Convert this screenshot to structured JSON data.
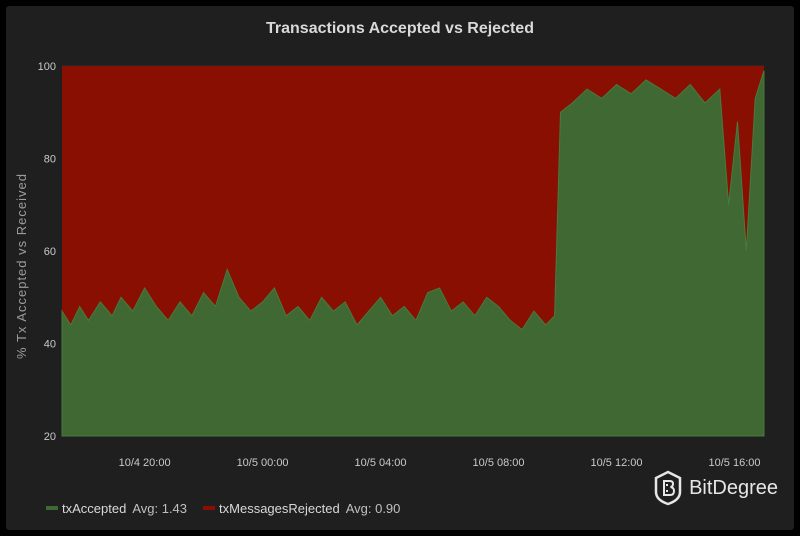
{
  "chart_data": {
    "type": "area",
    "stacked": true,
    "title": "Transactions Accepted vs Rejected",
    "ylabel": "% Tx Accepted vs Received",
    "xlabel": "",
    "ylim": [
      20,
      100
    ],
    "yticks": [
      "20",
      "40",
      "60",
      "80",
      "100"
    ],
    "xticks": [
      "10/4 20:00",
      "10/5 00:00",
      "10/5 04:00",
      "10/5 08:00",
      "10/5 12:00",
      "10/5 16:00"
    ],
    "xtick_hours": [
      20,
      24,
      28,
      32,
      36,
      40
    ],
    "xlim_hours": [
      17.2,
      41.0
    ],
    "grid": true,
    "legend_position": "bottom-left",
    "series": [
      {
        "name": "txAccepted",
        "avg_label": "Avg: 1.43",
        "color": "#3f6833",
        "x_hours": [
          17.2,
          17.5,
          17.8,
          18.1,
          18.5,
          18.9,
          19.2,
          19.6,
          20.0,
          20.4,
          20.8,
          21.2,
          21.6,
          22.0,
          22.4,
          22.8,
          23.2,
          23.6,
          24.0,
          24.4,
          24.8,
          25.2,
          25.6,
          26.0,
          26.4,
          26.8,
          27.2,
          27.6,
          28.0,
          28.4,
          28.8,
          29.2,
          29.6,
          30.0,
          30.4,
          30.8,
          31.2,
          31.6,
          32.0,
          32.4,
          32.8,
          33.2,
          33.6,
          33.9,
          34.1,
          34.5,
          35.0,
          35.5,
          36.0,
          36.5,
          37.0,
          37.5,
          38.0,
          38.5,
          39.0,
          39.5,
          39.8,
          40.1,
          40.4,
          40.7,
          41.0
        ],
        "values": [
          47,
          44,
          48,
          45,
          49,
          46,
          50,
          47,
          52,
          48,
          45,
          49,
          46,
          51,
          48,
          56,
          50,
          47,
          49,
          52,
          46,
          48,
          45,
          50,
          47,
          49,
          44,
          47,
          50,
          46,
          48,
          45,
          51,
          52,
          47,
          49,
          46,
          50,
          48,
          45,
          43,
          47,
          44,
          46,
          90,
          92,
          95,
          93,
          96,
          94,
          97,
          95,
          93,
          96,
          92,
          95,
          70,
          88,
          60,
          93,
          99
        ]
      },
      {
        "name": "txMessagesRejected",
        "avg_label": "Avg: 0.90",
        "color": "#890f02",
        "note": "fills remainder up to 100%"
      }
    ]
  },
  "watermark": {
    "text": "BitDegree"
  }
}
